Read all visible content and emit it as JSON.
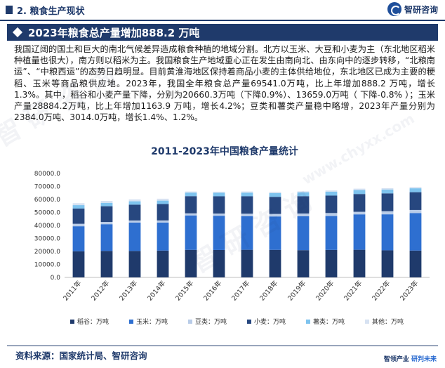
{
  "header": {
    "section_title": "2. 粮食生产现状",
    "logo_text": "智研咨询"
  },
  "headline": "2023年粮食总产量增加888.2 万吨",
  "body": {
    "paragraph": "我国辽阔的国土和巨大的南北气候差异造成粮食种植的地域分割。北方以玉米、大豆和小麦为主（东北地区稻米种植量也很大），南方则以稻米为主。我国粮食生产地域重心正在发生由南向北、由东向中的逐步转移，“北粮南运”、“中粮西运”的态势日趋明显。目前黄淮海地区保持着商品小麦的主体供给地位，东北地区已成为主要的粳稻、玉米等商品粮供应地。2023年，我国全年粮食总产量69541.0万吨，比上年增加888.2 万吨，增长1.3%。其中，稻谷和小麦产量下降，分别为20660.3万吨（下降0.9%）、13659.0万吨（ 下降-0.8% ）；玉米产量28884.2万吨，比上年增加1163.9 万吨，增长4.2%；豆类和薯类产量稳中略增，2023年产量分别为2384.0万吨、3014.0万吨，增长1.4%、1.2%。"
  },
  "chart_data": {
    "type": "bar",
    "stacked": true,
    "title": "2011-2023年中国粮食产量统计",
    "xlabel": "",
    "ylabel": "",
    "ylim": [
      0,
      80000
    ],
    "yticks": [
      "0.0",
      "10000.0",
      "20000.0",
      "30000.0",
      "40000.0",
      "50000.0",
      "60000.0",
      "70000.0",
      "80000.0"
    ],
    "categories": [
      "2011年",
      "2012年",
      "2013年",
      "2014年",
      "2015年",
      "2016年",
      "2017年",
      "2018年",
      "2019年",
      "2020年",
      "2021年",
      "2022年",
      "2023年"
    ],
    "grid": false,
    "legend_position": "bottom",
    "series": [
      {
        "name": "稻谷：万吨",
        "color": "#1f3a6b",
        "values": [
          20100,
          20400,
          20360,
          20650,
          21210,
          21110,
          21270,
          21210,
          20960,
          21190,
          21280,
          20850,
          20660
        ]
      },
      {
        "name": "玉米：万吨",
        "color": "#2e6fd0",
        "values": [
          19280,
          20560,
          21850,
          21560,
          26500,
          26360,
          25910,
          25720,
          26080,
          26070,
          27260,
          27720,
          28884
        ]
      },
      {
        "name": "豆类：万吨",
        "color": "#b9cce8",
        "values": [
          1900,
          1730,
          1600,
          1630,
          1590,
          1650,
          1840,
          1920,
          2130,
          2290,
          1970,
          2350,
          2384
        ]
      },
      {
        "name": "小麦：万吨",
        "color": "#27477f",
        "values": [
          11740,
          12100,
          12190,
          12620,
          13260,
          13330,
          13430,
          13140,
          13360,
          13430,
          13690,
          13770,
          13659
        ]
      },
      {
        "name": "薯类：万吨",
        "color": "#7ec3ee",
        "values": [
          2620,
          2640,
          2600,
          2670,
          2730,
          2730,
          2800,
          2870,
          2880,
          2990,
          3040,
          2980,
          3014
        ]
      },
      {
        "name": "其他：万吨",
        "color": "#d7e2f2",
        "values": [
          1500,
          1470,
          1440,
          1450,
          840,
          780,
          890,
          920,
          880,
          960,
          1080,
          980,
          944
        ]
      }
    ]
  },
  "footer": {
    "source": "资料来源：国家统计局、智研咨询",
    "slogan_a": "智领产业",
    "slogan_b": "研判未来"
  },
  "watermark": {
    "text_a": "智 研 咨 询",
    "text_b": "www.chyxx.com"
  }
}
